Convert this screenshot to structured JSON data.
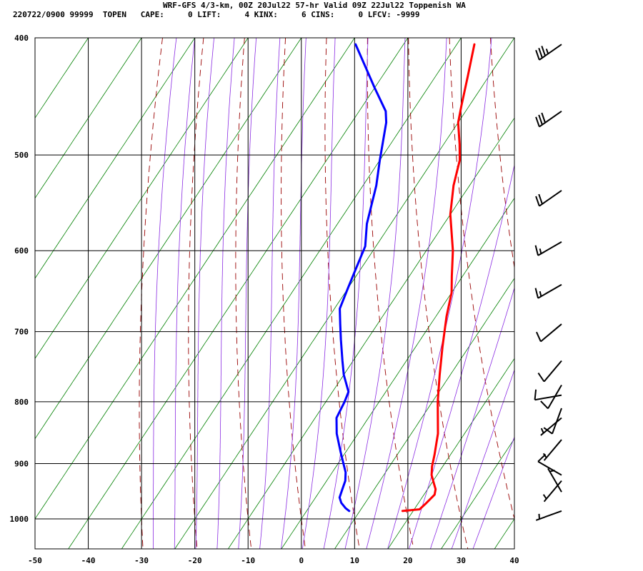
{
  "header": {
    "title": "WRF-GFS 4/3-km, 00Z 20Jul22 57-hr Valid 09Z 22Jul22 Toppenish WA",
    "info": "220722/0900 99999  TOPEN   CAPE:     0 LIFT:     4 KINX:     6 CINS:     0 LFCV: -9999"
  },
  "colors": {
    "temperature": "#ff0000",
    "dewpoint": "#0000ff",
    "dry_adiabat": "#990000",
    "isotherm_skew": "#008000",
    "moist_adiabat": "#8a2be2",
    "grid": "#000000"
  },
  "chart_data": {
    "type": "line",
    "title": "WRF-GFS 4/3-km, 00Z 20Jul22 57-hr Valid 09Z 22Jul22 Toppenish WA",
    "xlabel": "",
    "ylabel": "",
    "xlim": [
      -50,
      40
    ],
    "ylim": [
      1050,
      400
    ],
    "y_scale": "log",
    "grid": true,
    "x_ticks": [
      -50,
      -40,
      -30,
      -20,
      -10,
      0,
      10,
      20,
      30,
      40
    ],
    "y_ticks": [
      400,
      500,
      600,
      700,
      800,
      900,
      1000
    ],
    "series": [
      {
        "key": "temperature",
        "points": [
          [
            18.0,
            985
          ],
          [
            21.0,
            982
          ],
          [
            21.5,
            970
          ],
          [
            22.0,
            955
          ],
          [
            21.5,
            945
          ],
          [
            20.5,
            935
          ],
          [
            19.0,
            920
          ],
          [
            18.0,
            905
          ],
          [
            17.0,
            885
          ],
          [
            15.0,
            850
          ],
          [
            11.0,
            800
          ],
          [
            8.0,
            760
          ],
          [
            5.0,
            720
          ],
          [
            2.0,
            680
          ],
          [
            0.0,
            650
          ],
          [
            -2.0,
            630
          ],
          [
            -5.0,
            600
          ],
          [
            -10.0,
            560
          ],
          [
            -13.0,
            530
          ],
          [
            -15.0,
            505
          ],
          [
            -17.0,
            490
          ],
          [
            -20.0,
            470
          ],
          [
            -21.5,
            455
          ],
          [
            -24.0,
            430
          ],
          [
            -26.7,
            405
          ]
        ]
      },
      {
        "key": "dewpoint",
        "points": [
          [
            8.0,
            985
          ],
          [
            7.0,
            980
          ],
          [
            5.5,
            970
          ],
          [
            4.5,
            960
          ],
          [
            4.0,
            945
          ],
          [
            3.5,
            930
          ],
          [
            2.5,
            915
          ],
          [
            1.0,
            900
          ],
          [
            -1.0,
            880
          ],
          [
            -4.0,
            850
          ],
          [
            -6.0,
            825
          ],
          [
            -6.5,
            800
          ],
          [
            -7.0,
            785
          ],
          [
            -10.0,
            760
          ],
          [
            -12.0,
            740
          ],
          [
            -15.0,
            710
          ],
          [
            -17.0,
            690
          ],
          [
            -19.0,
            670
          ],
          [
            -20.0,
            645
          ],
          [
            -21.0,
            620
          ],
          [
            -22.0,
            595
          ],
          [
            -24.5,
            570
          ],
          [
            -27.5,
            530
          ],
          [
            -30.0,
            505
          ],
          [
            -33.5,
            470
          ],
          [
            -35.0,
            460
          ],
          [
            -40.0,
            440
          ],
          [
            -49.0,
            405
          ]
        ]
      }
    ],
    "wind_barbs": [
      {
        "p": 405,
        "dir": 235,
        "kt": 35
      },
      {
        "p": 460,
        "dir": 235,
        "kt": 30
      },
      {
        "p": 535,
        "dir": 235,
        "kt": 20
      },
      {
        "p": 590,
        "dir": 240,
        "kt": 15
      },
      {
        "p": 640,
        "dir": 240,
        "kt": 15
      },
      {
        "p": 690,
        "dir": 230,
        "kt": 10
      },
      {
        "p": 740,
        "dir": 220,
        "kt": 10
      },
      {
        "p": 775,
        "dir": 210,
        "kt": 10
      },
      {
        "p": 790,
        "dir": 260,
        "kt": 10
      },
      {
        "p": 810,
        "dir": 200,
        "kt": 10
      },
      {
        "p": 825,
        "dir": 230,
        "kt": 5
      },
      {
        "p": 860,
        "dir": 220,
        "kt": 5
      },
      {
        "p": 920,
        "dir": 300,
        "kt": 10
      },
      {
        "p": 930,
        "dir": 220,
        "kt": 5
      },
      {
        "p": 950,
        "dir": 330,
        "kt": 5
      },
      {
        "p": 985,
        "dir": 250,
        "kt": 5
      }
    ]
  }
}
